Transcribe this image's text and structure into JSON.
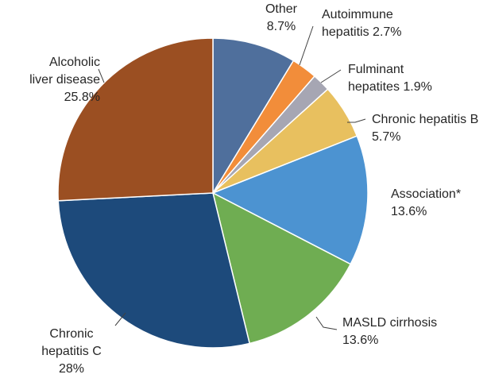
{
  "chart_data": {
    "type": "pie",
    "slices": [
      {
        "lines": [
          "Other",
          "8.7%"
        ],
        "value": 8.7,
        "color": "#4f6f9c"
      },
      {
        "lines": [
          "Autoimmune",
          "hepatitis  2.7%"
        ],
        "value": 2.7,
        "color": "#f28d3a"
      },
      {
        "lines": [
          "Fulminant",
          "hepatites 1.9%"
        ],
        "value": 1.9,
        "color": "#a6a6b3"
      },
      {
        "lines": [
          "Chronic hepatitis B",
          "5.7%"
        ],
        "value": 5.7,
        "color": "#e8c05f"
      },
      {
        "lines": [
          "Association*",
          "13.6%"
        ],
        "value": 13.6,
        "color": "#4c93d1"
      },
      {
        "lines": [
          "MASLD cirrhosis",
          "13.6%"
        ],
        "value": 13.6,
        "color": "#6fad52"
      },
      {
        "lines": [
          "Chronic",
          "hepatitis C",
          "28%"
        ],
        "value": 28,
        "color": "#1d4a7b"
      },
      {
        "lines": [
          "Alcoholic",
          "liver disease",
          "25.8%"
        ],
        "value": 25.8,
        "color": "#9b4f22"
      }
    ],
    "start_angle_deg": 0,
    "direction": "clockwise",
    "legend": "none"
  }
}
